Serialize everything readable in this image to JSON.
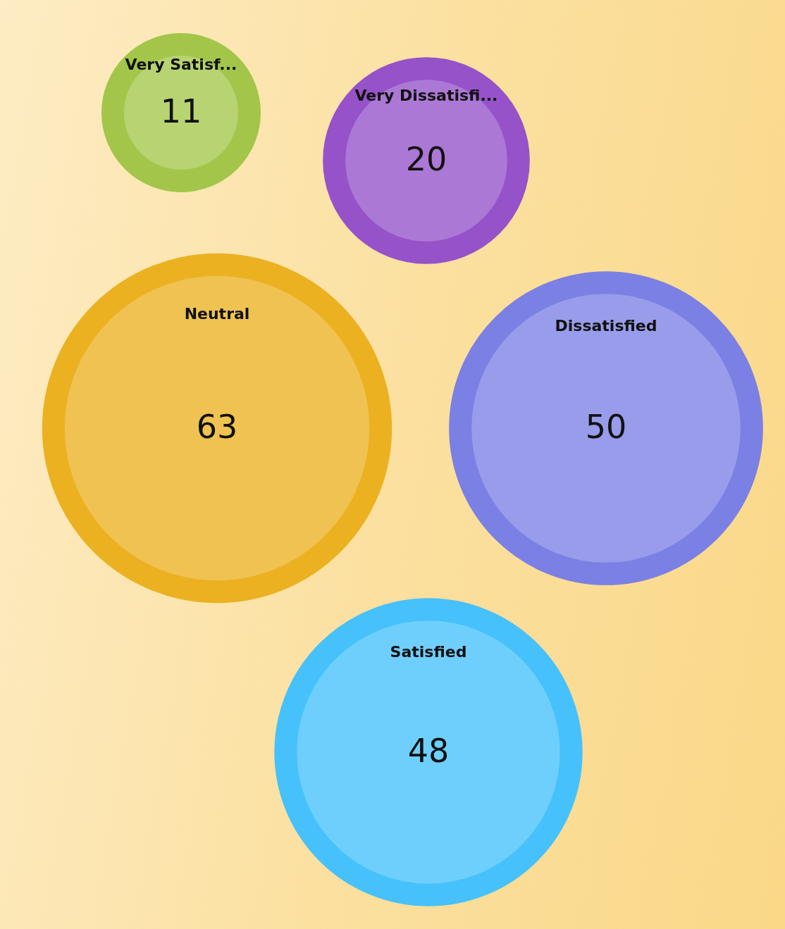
{
  "chart_data": {
    "type": "other",
    "categories": [
      "Very Satisf...",
      "Very Dissatisfi...",
      "Neutral",
      "Dissatisfied",
      "Satisfied"
    ],
    "values": [
      11,
      20,
      63,
      50,
      48
    ],
    "colors": [
      "#a3c64a",
      "#9552c9",
      "#ebb121",
      "#7b80e4",
      "#46c1fb"
    ],
    "data_labels": true
  }
}
